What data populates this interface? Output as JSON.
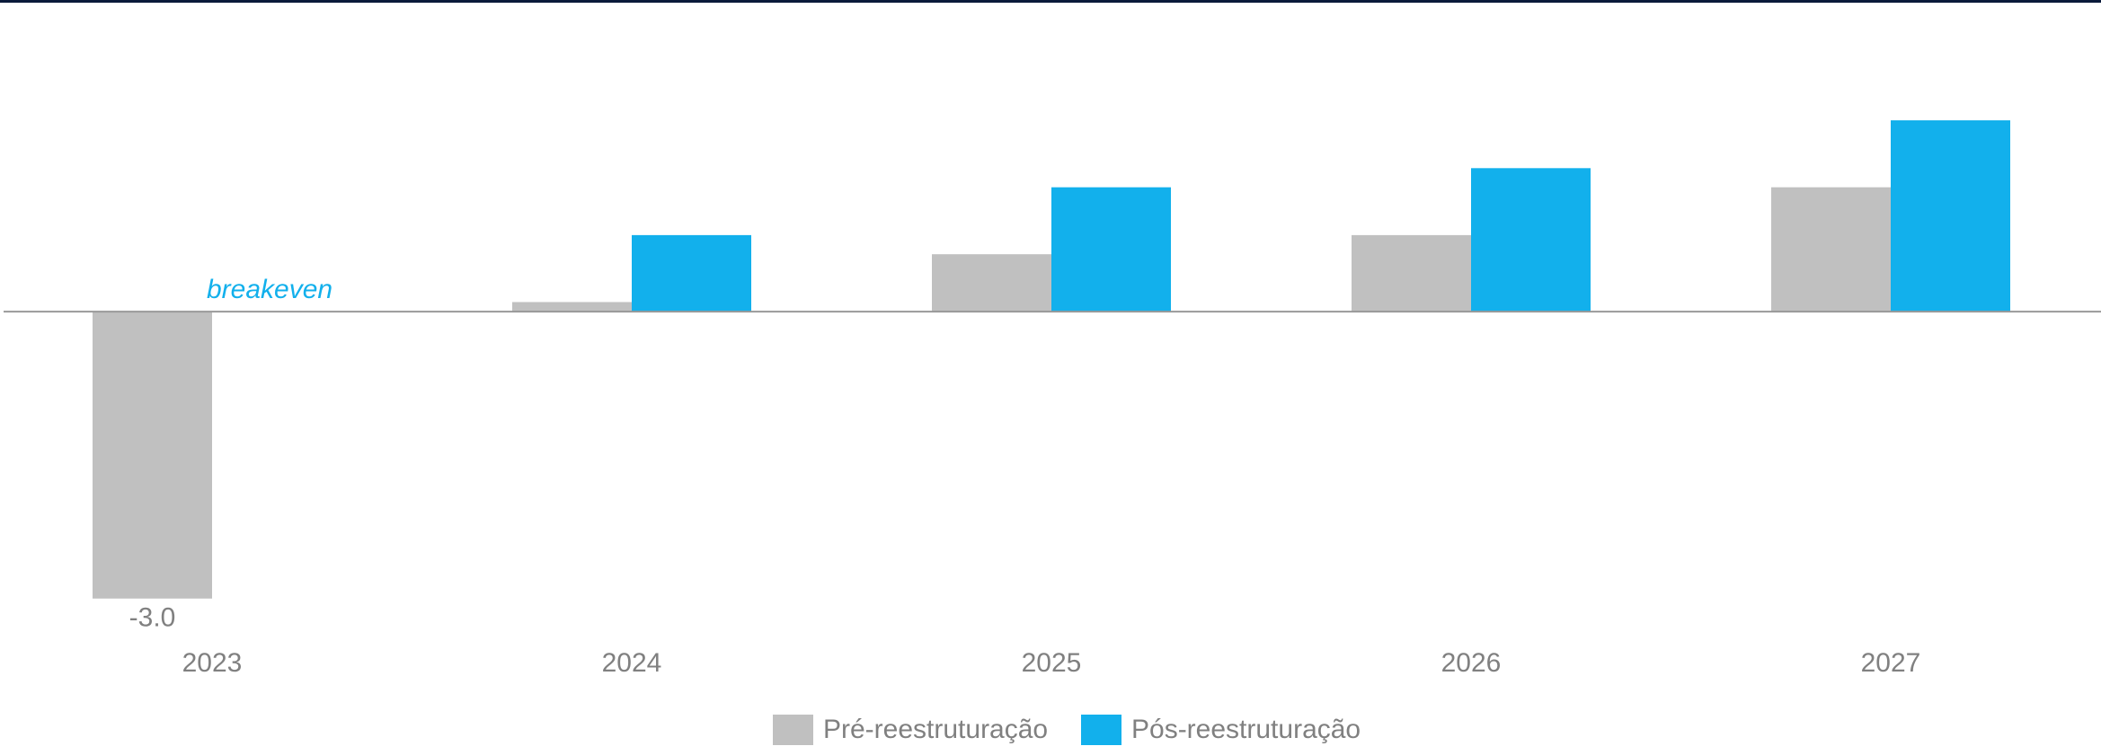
{
  "chart_data": {
    "type": "bar",
    "categories": [
      "2023",
      "2024",
      "2025",
      "2026",
      "2027"
    ],
    "series": [
      {
        "name": "Pré-reestruturação",
        "color": "#c0c0c0",
        "values": [
          -3.0,
          0.1,
          0.6,
          0.8,
          1.3
        ],
        "value_labels": [
          "-3.0",
          null,
          null,
          null,
          null
        ]
      },
      {
        "name": "Pós-reestruturação",
        "color": "#12b0ec",
        "values": [
          null,
          0.8,
          1.3,
          1.5,
          2.0
        ]
      }
    ],
    "annotation": "breakeven",
    "ylim": [
      -3.5,
      3
    ],
    "legend": "bottom"
  }
}
